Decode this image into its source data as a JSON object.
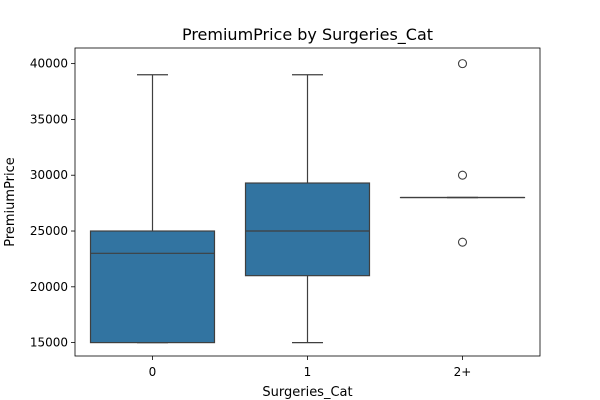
{
  "chart_data": {
    "type": "box",
    "title": "PremiumPrice by Surgeries_Cat",
    "xlabel": "Surgeries_Cat",
    "ylabel": "PremiumPrice",
    "ylim": [
      13800,
      41400
    ],
    "yticks": [
      15000,
      20000,
      25000,
      30000,
      35000,
      40000
    ],
    "grid": false,
    "color": "#3274a1",
    "categories": [
      "0",
      "1",
      "2+"
    ],
    "boxes": [
      {
        "category": "0",
        "whisker_low": 15000,
        "q1": 15000,
        "median": 23000,
        "q3": 25000,
        "whisker_high": 39000,
        "outliers": []
      },
      {
        "category": "1",
        "whisker_low": 15000,
        "q1": 21000,
        "median": 25000,
        "q3": 29300,
        "whisker_high": 39000,
        "outliers": []
      },
      {
        "category": "2+",
        "whisker_low": 28000,
        "q1": 28000,
        "median": 28000,
        "q3": 28000,
        "whisker_high": 28000,
        "outliers": [
          24000,
          30000,
          40000
        ]
      }
    ]
  }
}
